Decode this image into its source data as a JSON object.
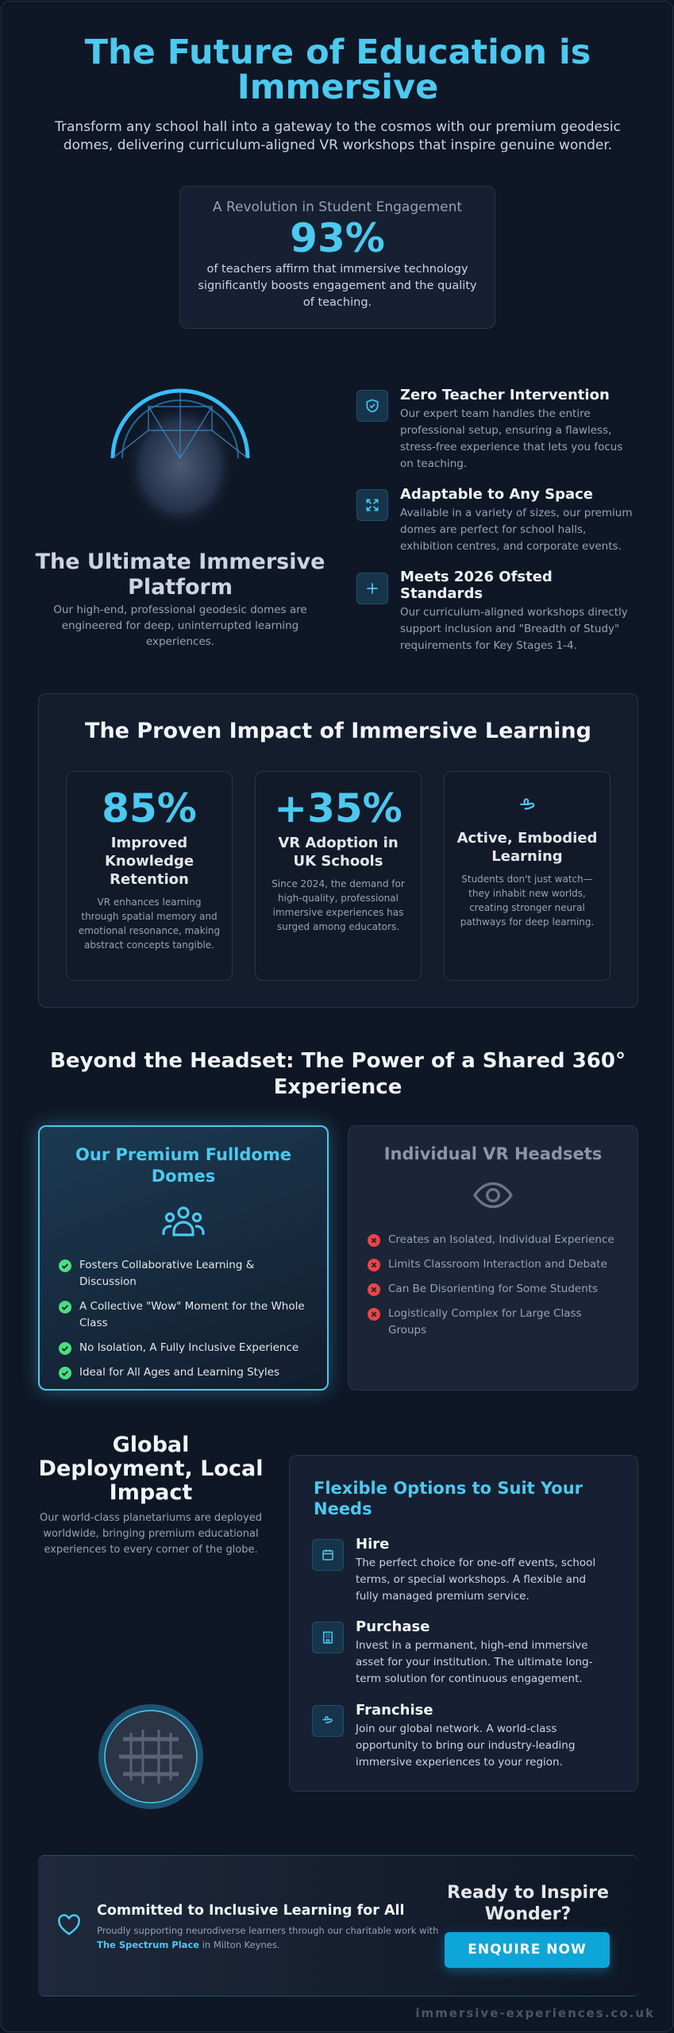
{
  "header": {
    "title": "The Future of Education is Immersive",
    "subtitle": "Transform any school hall into a gateway to the cosmos with our premium geodesic domes, delivering curriculum-aligned VR workshops that inspire genuine wonder."
  },
  "stat_card": {
    "label": "A Revolution in Student Engagement",
    "value": "93%",
    "text": "of teachers affirm that immersive technology significantly boosts engagement and the quality of teaching."
  },
  "platform": {
    "title": "The Ultimate Immersive Platform",
    "text": "Our high-end, professional geodesic domes are engineered for deep, uninterrupted learning experiences."
  },
  "features": [
    {
      "title": "Zero Teacher Intervention",
      "text": "Our expert team handles the entire professional setup, ensuring a flawless, stress-free experience that lets you focus on teaching."
    },
    {
      "title": "Adaptable to Any Space",
      "text": "Available in a variety of sizes, our premium domes are perfect for school halls, exhibition centres, and corporate events."
    },
    {
      "title": "Meets 2026 Ofsted Standards",
      "text": "Our curriculum-aligned workshops directly support inclusion and \"Breadth of Study\" requirements for Key Stages 1-4."
    }
  ],
  "impact": {
    "title": "The Proven Impact of Immersive Learning",
    "cards": [
      {
        "value": "85%",
        "title": "Improved Knowledge Retention",
        "text": "VR enhances learning through spatial memory and emotional resonance, making abstract concepts tangible."
      },
      {
        "value": "+35%",
        "title": "VR Adoption in UK Schools",
        "text": "Since 2024, the demand for high-quality, professional immersive experiences has surged among educators."
      },
      {
        "title": "Active, Embodied Learning",
        "text": "Students don't just watch—they inhabit new worlds, creating stronger neural pathways for deep learning."
      }
    ]
  },
  "comparison": {
    "title": "Beyond the Headset: The Power of a Shared 360° Experience",
    "premium": {
      "title": "Our Premium Fulldome Domes",
      "items": [
        "Fosters Collaborative Learning & Discussion",
        "A Collective \"Wow\" Moment for the Whole Class",
        "No Isolation, A Fully Inclusive Experience",
        "Ideal for All Ages and Learning Styles"
      ]
    },
    "headsets": {
      "title": "Individual VR Headsets",
      "items": [
        "Creates an Isolated, Individual Experience",
        "Limits Classroom Interaction and Debate",
        "Can Be Disorienting for Some Students",
        "Logistically Complex for Large Class Groups"
      ]
    }
  },
  "global": {
    "title": "Global Deployment, Local Impact",
    "text": "Our world-class planetariums are deployed worldwide, bringing premium educational experiences to every corner of the globe."
  },
  "options": {
    "title": "Flexible Options to Suit Your Needs",
    "items": [
      {
        "title": "Hire",
        "text": "The perfect choice for one-off events, school terms, or special workshops. A flexible and fully managed premium service."
      },
      {
        "title": "Purchase",
        "text": "Invest in a permanent, high-end immersive asset for your institution. The ultimate long-term solution for continuous engagement."
      },
      {
        "title": "Franchise",
        "text": "Join our global network. A world-class opportunity to bring our industry-leading immersive experiences to your region."
      }
    ]
  },
  "cta": {
    "title": "Committed to Inclusive Learning for All",
    "text": "Proudly supporting neurodiverse learners through our charitable work with",
    "link": "The Spectrum Place",
    "text_end": "in Milton Keynes.",
    "heading": "Ready to Inspire Wonder?",
    "button": "ENQUIRE NOW"
  },
  "footer": {
    "url": "immersive-experiences.co.uk"
  }
}
